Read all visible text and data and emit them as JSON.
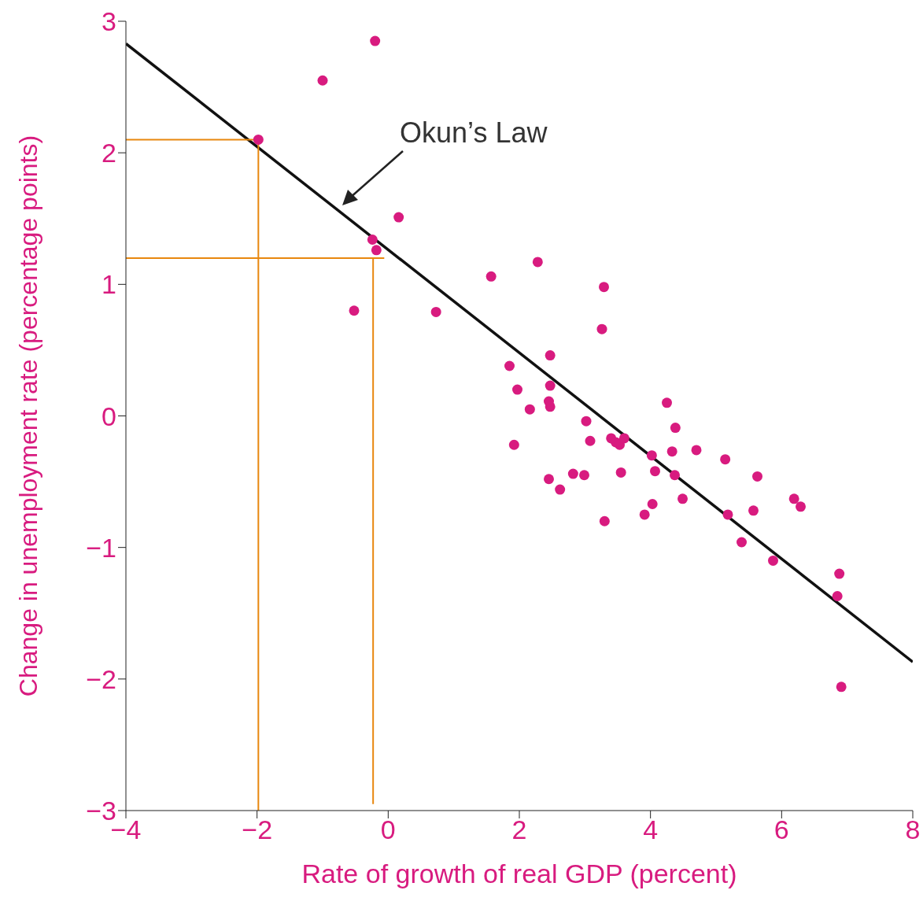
{
  "chart_data": {
    "type": "scatter",
    "xlabel": "Rate of growth of real GDP (percent)",
    "ylabel": "Change in unemployment rate (percentage points)",
    "xlim": [
      -4,
      8
    ],
    "xticks": [
      {
        "value": -4,
        "label": "−4"
      },
      {
        "value": -2,
        "label": "−2"
      },
      0,
      2,
      4,
      6,
      8
    ],
    "ylim": [
      -3,
      3
    ],
    "yticks": [
      {
        "value": -3,
        "label": "−3"
      },
      {
        "value": -2,
        "label": "−2"
      },
      {
        "value": -1,
        "label": "−1"
      },
      0,
      1,
      2,
      3
    ],
    "grid": false,
    "legend": false,
    "line_style": "solid",
    "annotations": [
      "Okun’s Law"
    ],
    "series": [
      {
        "marker": "circle",
        "color": "#d81b7f",
        "x": [
          -0.2,
          -1.0,
          -1.98,
          0.16,
          -0.24,
          -0.18,
          -0.52,
          0.73,
          1.57,
          2.28,
          3.29,
          3.26,
          2.47,
          1.85,
          2.47,
          1.97,
          2.45,
          2.47,
          2.16,
          1.92,
          3.02,
          3.08,
          3.4,
          3.47,
          3.53,
          3.6,
          3.55,
          2.45,
          2.82,
          2.99,
          2.62,
          3.3,
          3.91,
          4.03,
          4.02,
          4.07,
          4.25,
          4.38,
          4.33,
          4.37,
          4.49,
          4.7,
          5.14,
          5.63,
          5.18,
          5.57,
          5.39,
          5.87,
          6.19,
          6.29,
          6.88,
          6.85,
          6.91
        ],
        "values": [
          2.85,
          2.55,
          2.1,
          1.51,
          1.34,
          1.26,
          0.8,
          0.79,
          1.06,
          1.17,
          0.98,
          0.66,
          0.46,
          0.38,
          0.23,
          0.2,
          0.11,
          0.07,
          0.05,
          -0.22,
          -0.04,
          -0.19,
          -0.17,
          -0.2,
          -0.22,
          -0.17,
          -0.43,
          -0.48,
          -0.44,
          -0.45,
          -0.56,
          -0.8,
          -0.75,
          -0.67,
          -0.3,
          -0.42,
          0.1,
          -0.09,
          -0.27,
          -0.45,
          -0.63,
          -0.26,
          -0.33,
          -0.46,
          -0.75,
          -0.72,
          -0.96,
          -1.1,
          -0.63,
          -0.69,
          -1.2,
          -1.37,
          -2.06
        ]
      },
      {
        "type": "line",
        "marker": "none",
        "color": "#111111",
        "x": [
          -4,
          8
        ],
        "values": [
          2.83,
          -1.87
        ]
      },
      {
        "type": "line",
        "marker": "none",
        "color": "#e8870e",
        "x": [
          -4,
          -1.98
        ],
        "values": [
          2.1,
          2.1
        ]
      },
      {
        "type": "line",
        "marker": "none",
        "color": "#e8870e",
        "x": [
          -1.98,
          -1.98
        ],
        "values": [
          -3,
          2.1
        ]
      },
      {
        "type": "line",
        "marker": "none",
        "color": "#e8870e",
        "x": [
          -4,
          -0.06
        ],
        "values": [
          1.2,
          1.2
        ]
      },
      {
        "type": "line",
        "marker": "none",
        "color": "#e8870e",
        "x": [
          -0.23,
          -0.23
        ],
        "values": [
          -2.95,
          1.2
        ]
      }
    ]
  }
}
